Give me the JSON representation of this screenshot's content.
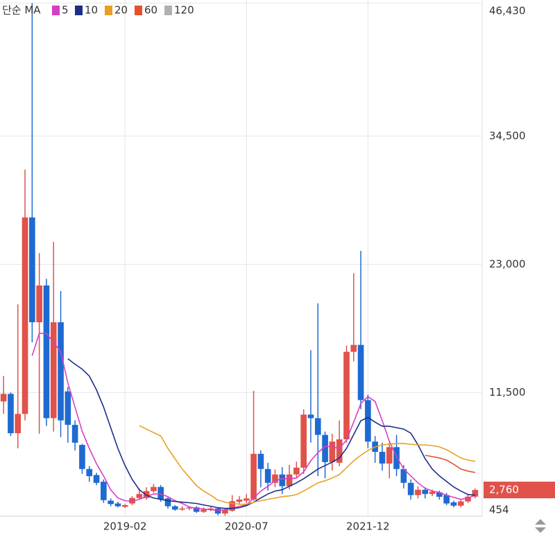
{
  "chart_data": {
    "type": "candlestick",
    "legend_title": "단순 MA",
    "categories": [
      null,
      null,
      null,
      null,
      null,
      null,
      null,
      null,
      null,
      null,
      null,
      null,
      null,
      null,
      null,
      null,
      null,
      "2019-02",
      null,
      null,
      null,
      null,
      null,
      null,
      null,
      null,
      null,
      null,
      null,
      null,
      null,
      null,
      null,
      null,
      "2020-07",
      null,
      null,
      null,
      null,
      null,
      null,
      null,
      null,
      null,
      null,
      null,
      null,
      null,
      null,
      null,
      null,
      "2021-12",
      null,
      null,
      null,
      null,
      null,
      null,
      null,
      null,
      null,
      null,
      null,
      null,
      null,
      null,
      null
    ],
    "open": [
      10700,
      11380,
      7850,
      9580,
      27200,
      17800,
      21100,
      9200,
      17800,
      11600,
      8600,
      6800,
      4640,
      4100,
      3500,
      1800,
      1550,
      1250,
      1550,
      2040,
      2040,
      2660,
      3030,
      2000,
      1300,
      1000,
      1100,
      1200,
      800,
      1000,
      1100,
      650,
      900,
      1700,
      1800,
      1900,
      6000,
      4640,
      3400,
      4150,
      3100,
      4150,
      4760,
      9520,
      9200,
      7700,
      5260,
      5200,
      7300,
      15150,
      15770,
      10820,
      7100,
      6180,
      5130,
      6600,
      4640,
      3400,
      2300,
      2780,
      2400,
      2550,
      2300,
      1650,
      1350,
      1730,
      2160
    ],
    "high": [
      12980,
      11500,
      19400,
      31500,
      46430,
      24000,
      21700,
      25000,
      20600,
      12000,
      9000,
      6900,
      4900,
      4300,
      3700,
      2000,
      1700,
      1500,
      2200,
      2900,
      3000,
      3300,
      3200,
      2100,
      1400,
      1300,
      1300,
      1300,
      1200,
      1300,
      1200,
      1100,
      2300,
      2200,
      2400,
      11650,
      6300,
      5200,
      4600,
      4800,
      5000,
      5300,
      10000,
      15300,
      19500,
      8000,
      7800,
      9000,
      15700,
      22200,
      24200,
      11300,
      7600,
      7000,
      7000,
      7700,
      5000,
      3700,
      3100,
      3000,
      2800,
      2700,
      2500,
      1800,
      1900,
      2400,
      2900
    ],
    "low": [
      9580,
      7600,
      6490,
      9000,
      16000,
      7800,
      8500,
      8000,
      7500,
      7000,
      6300,
      4200,
      3500,
      3200,
      1600,
      1300,
      1200,
      1150,
      1400,
      1900,
      1900,
      2500,
      1700,
      1100,
      900,
      900,
      950,
      700,
      700,
      850,
      500,
      454,
      800,
      1500,
      1600,
      1800,
      3000,
      2700,
      3000,
      2400,
      2800,
      3900,
      4200,
      7000,
      4000,
      3800,
      4500,
      4900,
      7000,
      14300,
      10000,
      6500,
      5200,
      4500,
      3800,
      4000,
      2900,
      1900,
      2000,
      2000,
      2200,
      1900,
      1400,
      1200,
      1200,
      1600,
      2000
    ],
    "close": [
      11380,
      7850,
      9580,
      27200,
      17800,
      21100,
      9200,
      17800,
      9000,
      8600,
      7000,
      4640,
      4000,
      3400,
      1850,
      1500,
      1300,
      1400,
      2040,
      2400,
      2660,
      3030,
      1900,
      1300,
      1000,
      1100,
      1200,
      800,
      1000,
      1100,
      650,
      1000,
      1750,
      1900,
      2000,
      6000,
      4640,
      3400,
      4150,
      3100,
      4150,
      4760,
      9520,
      9200,
      7700,
      5260,
      7100,
      7300,
      15150,
      15770,
      10820,
      7100,
      6180,
      5130,
      6600,
      4640,
      3400,
      2300,
      2780,
      2400,
      2600,
      2150,
      1550,
      1350,
      1730,
      2160,
      2760
    ],
    "up_color": "#e0524a",
    "down_color": "#1e6ad2",
    "series": [
      {
        "name": "5",
        "color": "#d63fc4",
        "values": [
          null,
          null,
          null,
          null,
          14800,
          16800,
          16800,
          16000,
          15150,
          12370,
          10200,
          8040,
          6490,
          5130,
          4020,
          2780,
          2040,
          1800,
          1730,
          1920,
          2160,
          2400,
          2400,
          2160,
          1800,
          1550,
          1240,
          1110,
          1050,
          990,
          930,
          990,
          1110,
          1300,
          1420,
          2040,
          2660,
          3090,
          3590,
          3770,
          3770,
          3830,
          4390,
          5380,
          6120,
          6680,
          6620,
          6490,
          7230,
          8840,
          10510,
          11130,
          10700,
          8970,
          7110,
          5750,
          4640,
          4020,
          3400,
          2910,
          2660,
          2540,
          2290,
          2100,
          1920,
          2040,
          2290
        ]
      },
      {
        "name": "10",
        "color": "#1a2e8a",
        "values": [
          null,
          null,
          null,
          null,
          null,
          null,
          null,
          null,
          null,
          14530,
          14040,
          13600,
          12980,
          11750,
          10200,
          8350,
          6490,
          4950,
          3710,
          2780,
          2290,
          2040,
          1920,
          1800,
          1730,
          1670,
          1610,
          1550,
          1420,
          1300,
          1170,
          1110,
          1110,
          1170,
          1360,
          1670,
          2040,
          2400,
          2660,
          2780,
          3090,
          3400,
          3770,
          4200,
          4640,
          4950,
          5260,
          5630,
          6490,
          7730,
          8970,
          9270,
          8840,
          8470,
          8470,
          8350,
          8220,
          7850,
          6800,
          5560,
          4640,
          4020,
          3520,
          3030,
          2660,
          2350,
          2290
        ]
      },
      {
        "name": "20",
        "color": "#e8a020",
        "values": [
          null,
          null,
          null,
          null,
          null,
          null,
          null,
          null,
          null,
          null,
          null,
          null,
          null,
          null,
          null,
          null,
          null,
          null,
          null,
          8530,
          8220,
          7910,
          7600,
          6490,
          5560,
          4640,
          3900,
          3150,
          2660,
          2290,
          1850,
          1670,
          1550,
          1480,
          1480,
          1670,
          1800,
          1920,
          2040,
          2160,
          2230,
          2350,
          2660,
          3030,
          3400,
          3590,
          3830,
          4140,
          4760,
          5380,
          5870,
          6310,
          6620,
          6800,
          6860,
          6930,
          6930,
          6860,
          6800,
          6800,
          6740,
          6620,
          6370,
          6000,
          5630,
          5440,
          5320
        ]
      },
      {
        "name": "60",
        "color": "#e8502a",
        "values": [
          null,
          null,
          null,
          null,
          null,
          null,
          null,
          null,
          null,
          null,
          null,
          null,
          null,
          null,
          null,
          null,
          null,
          null,
          null,
          null,
          null,
          null,
          null,
          null,
          null,
          null,
          null,
          null,
          null,
          null,
          null,
          null,
          null,
          null,
          null,
          null,
          null,
          null,
          null,
          null,
          null,
          null,
          null,
          null,
          null,
          null,
          null,
          null,
          null,
          null,
          null,
          null,
          null,
          null,
          null,
          null,
          null,
          null,
          null,
          5870,
          5750,
          5630,
          5440,
          5070,
          4640,
          4450,
          4330
        ]
      },
      {
        "name": "120",
        "color": "#b0b0b0",
        "values": [
          null,
          null,
          null,
          null,
          null,
          null,
          null,
          null,
          null,
          null,
          null,
          null,
          null,
          null,
          null,
          null,
          null,
          null,
          null,
          null,
          null,
          null,
          null,
          null,
          null,
          null,
          null,
          null,
          null,
          null,
          null,
          null,
          null,
          null,
          null,
          null,
          null,
          null,
          null,
          null,
          null,
          null,
          null,
          null,
          null,
          null,
          null,
          null,
          null,
          null,
          null,
          null,
          null,
          null,
          null,
          null,
          null,
          null,
          null,
          null,
          null,
          null,
          null,
          null,
          null,
          null,
          null
        ]
      }
    ],
    "ylim": [
      400,
      46700
    ],
    "yticks": [
      454,
      {
        "value": 11500,
        "label": "11,500"
      },
      {
        "value": 23000,
        "label": "23,000"
      },
      {
        "value": 34500,
        "label": "34,500"
      },
      {
        "value": 46430,
        "label": "46,430"
      }
    ],
    "current_price": {
      "value": 2760,
      "label": "2,760"
    },
    "grid": true
  }
}
